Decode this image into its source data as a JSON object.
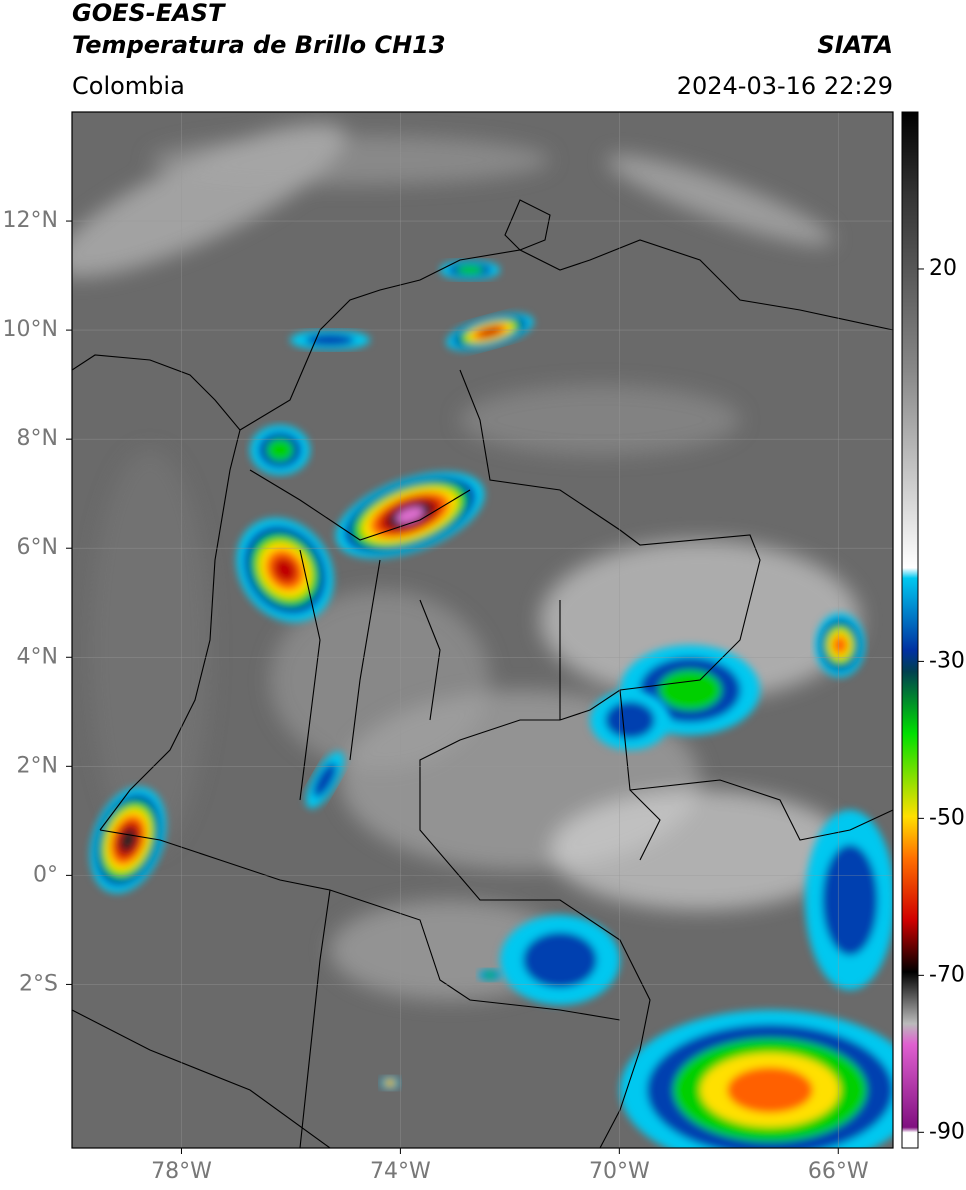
{
  "header": {
    "satellite": "GOES-EAST",
    "product": "Temperatura de Brillo CH13",
    "source": "SIATA",
    "region": "Colombia",
    "datetime": "2024-03-16 22:29"
  },
  "map": {
    "type": "map",
    "lonlim": [
      -80,
      -65
    ],
    "latlim": [
      -5,
      14
    ],
    "lonticks": [
      {
        "value": -78,
        "label": "78°W"
      },
      {
        "value": -74,
        "label": "74°W"
      },
      {
        "value": -70,
        "label": "70°W"
      },
      {
        "value": -66,
        "label": "66°W"
      }
    ],
    "latticks": [
      {
        "value": 12,
        "label": "12°N"
      },
      {
        "value": 10,
        "label": "10°N"
      },
      {
        "value": 8,
        "label": "8°N"
      },
      {
        "value": 6,
        "label": "6°N"
      },
      {
        "value": 4,
        "label": "4°N"
      },
      {
        "value": 2,
        "label": "2°N"
      },
      {
        "value": 0,
        "label": "0°"
      },
      {
        "value": -2,
        "label": "2°S"
      }
    ],
    "grid": true,
    "colorbar": {
      "lim": [
        -92,
        40
      ],
      "ticks": [
        20,
        -30,
        -50,
        -70,
        -90
      ]
    }
  }
}
